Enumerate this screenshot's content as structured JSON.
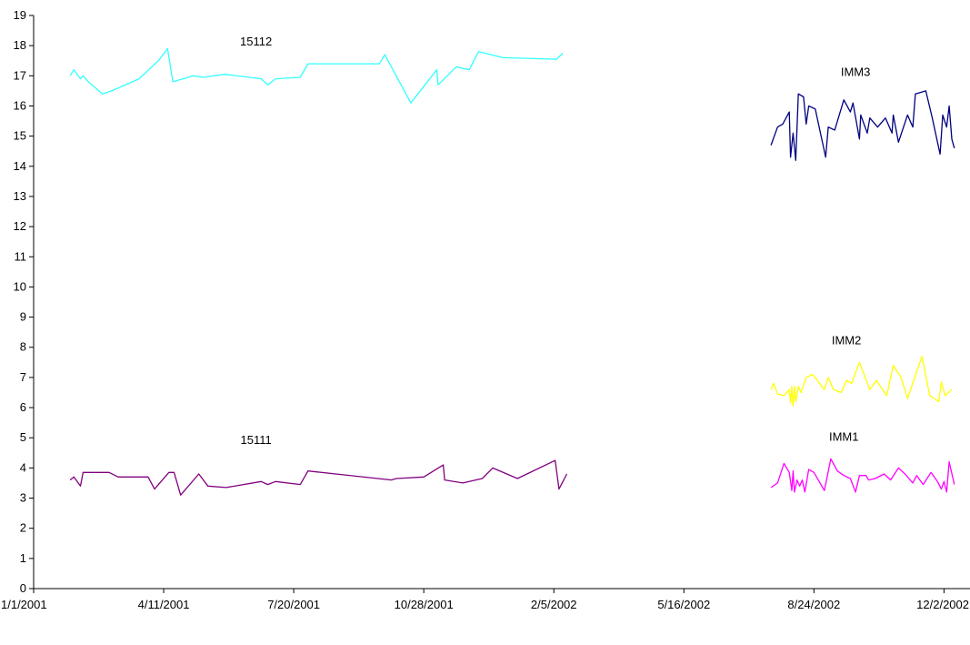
{
  "chart_data": {
    "type": "line",
    "title": "",
    "xlabel": "",
    "ylabel": "",
    "x_type": "date",
    "xlim": [
      "2001-01-01",
      "2002-12-22"
    ],
    "ylim": [
      0,
      19
    ],
    "y_ticks": [
      0,
      1,
      2,
      3,
      4,
      5,
      6,
      7,
      8,
      9,
      10,
      11,
      12,
      13,
      14,
      15,
      16,
      17,
      18,
      19
    ],
    "x_tick_labels": [
      "1/1/2001",
      "4/11/2001",
      "7/20/2001",
      "10/28/2001",
      "2/5/2002",
      "5/16/2002",
      "8/24/2002",
      "12/2/2002"
    ],
    "x_tick_dates": [
      "2001-01-01",
      "2001-04-11",
      "2001-07-20",
      "2001-10-28",
      "2002-02-05",
      "2002-05-16",
      "2002-08-24",
      "2002-12-02"
    ],
    "grid": false,
    "legend": "none",
    "series": [
      {
        "name": "15112",
        "color": "#33ffff",
        "label_at": [
          "2001-06-21",
          18.0
        ],
        "points": [
          [
            "2001-01-29",
            17.0
          ],
          [
            "2001-02-01",
            17.2
          ],
          [
            "2001-02-06",
            16.9
          ],
          [
            "2001-02-08",
            17.0
          ],
          [
            "2001-02-12",
            16.8
          ],
          [
            "2001-02-23",
            16.4
          ],
          [
            "2001-03-02",
            16.5
          ],
          [
            "2001-03-23",
            16.9
          ],
          [
            "2001-04-07",
            17.5
          ],
          [
            "2001-04-14",
            17.9
          ],
          [
            "2001-04-18",
            16.8
          ],
          [
            "2001-05-04",
            17.0
          ],
          [
            "2001-05-11",
            16.95
          ],
          [
            "2001-05-28",
            17.05
          ],
          [
            "2001-06-25",
            16.9
          ],
          [
            "2001-06-30",
            16.7
          ],
          [
            "2001-07-06",
            16.9
          ],
          [
            "2001-07-25",
            16.95
          ],
          [
            "2001-07-31",
            17.4
          ],
          [
            "2001-09-24",
            17.4
          ],
          [
            "2001-09-28",
            17.7
          ],
          [
            "2001-10-18",
            16.1
          ],
          [
            "2001-11-07",
            17.2
          ],
          [
            "2001-11-08",
            16.7
          ],
          [
            "2001-11-22",
            17.3
          ],
          [
            "2001-12-02",
            17.2
          ],
          [
            "2001-12-09",
            17.8
          ],
          [
            "2001-12-28",
            17.6
          ],
          [
            "2002-02-07",
            17.55
          ],
          [
            "2002-02-12",
            17.75
          ]
        ]
      },
      {
        "name": "15111",
        "color": "#800080",
        "label_at": [
          "2001-06-21",
          4.8
        ],
        "points": [
          [
            "2001-01-29",
            3.6
          ],
          [
            "2001-02-01",
            3.7
          ],
          [
            "2001-02-06",
            3.4
          ],
          [
            "2001-02-08",
            3.85
          ],
          [
            "2001-02-23",
            3.85
          ],
          [
            "2001-02-28",
            3.85
          ],
          [
            "2001-03-07",
            3.7
          ],
          [
            "2001-03-30",
            3.7
          ],
          [
            "2001-04-04",
            3.3
          ],
          [
            "2001-04-15",
            3.85
          ],
          [
            "2001-04-19",
            3.85
          ],
          [
            "2001-04-24",
            3.1
          ],
          [
            "2001-05-08",
            3.8
          ],
          [
            "2001-05-15",
            3.4
          ],
          [
            "2001-05-29",
            3.35
          ],
          [
            "2001-06-25",
            3.55
          ],
          [
            "2001-06-30",
            3.45
          ],
          [
            "2001-07-06",
            3.55
          ],
          [
            "2001-07-25",
            3.45
          ],
          [
            "2001-07-31",
            3.9
          ],
          [
            "2001-10-03",
            3.6
          ],
          [
            "2001-10-07",
            3.65
          ],
          [
            "2001-10-28",
            3.7
          ],
          [
            "2001-11-12",
            4.1
          ],
          [
            "2001-11-13",
            3.6
          ],
          [
            "2001-11-27",
            3.5
          ],
          [
            "2001-12-12",
            3.65
          ],
          [
            "2001-12-20",
            4.0
          ],
          [
            "2002-01-08",
            3.65
          ],
          [
            "2002-02-06",
            4.25
          ],
          [
            "2002-02-09",
            3.3
          ],
          [
            "2002-02-15",
            3.8
          ]
        ]
      },
      {
        "name": "IMM3",
        "color": "#000080",
        "label_at": [
          "2002-09-25",
          17.0
        ],
        "points": [
          [
            "2002-07-22",
            14.7
          ],
          [
            "2002-07-27",
            15.3
          ],
          [
            "2002-07-31",
            15.4
          ],
          [
            "2002-08-05",
            15.8
          ],
          [
            "2002-08-06",
            14.3
          ],
          [
            "2002-08-08",
            15.1
          ],
          [
            "2002-08-10",
            14.2
          ],
          [
            "2002-08-12",
            16.4
          ],
          [
            "2002-08-16",
            16.3
          ],
          [
            "2002-08-18",
            15.4
          ],
          [
            "2002-08-20",
            16.0
          ],
          [
            "2002-08-25",
            15.9
          ],
          [
            "2002-09-02",
            14.3
          ],
          [
            "2002-09-04",
            15.3
          ],
          [
            "2002-09-09",
            15.2
          ],
          [
            "2002-09-16",
            16.2
          ],
          [
            "2002-09-21",
            15.8
          ],
          [
            "2002-09-23",
            16.1
          ],
          [
            "2002-09-28",
            14.9
          ],
          [
            "2002-09-29",
            15.7
          ],
          [
            "2002-10-04",
            15.1
          ],
          [
            "2002-10-06",
            15.6
          ],
          [
            "2002-10-12",
            15.3
          ],
          [
            "2002-10-18",
            15.6
          ],
          [
            "2002-10-23",
            15.1
          ],
          [
            "2002-10-24",
            15.7
          ],
          [
            "2002-10-28",
            14.8
          ],
          [
            "2002-11-04",
            15.7
          ],
          [
            "2002-11-08",
            15.3
          ],
          [
            "2002-11-10",
            16.4
          ],
          [
            "2002-11-18",
            16.5
          ],
          [
            "2002-11-23",
            15.6
          ],
          [
            "2002-11-29",
            14.4
          ],
          [
            "2002-12-01",
            15.7
          ],
          [
            "2002-12-04",
            15.3
          ],
          [
            "2002-12-06",
            16.0
          ],
          [
            "2002-12-08",
            14.9
          ],
          [
            "2002-12-10",
            14.6
          ]
        ]
      },
      {
        "name": "IMM2",
        "color": "#ffff00",
        "label_at": [
          "2002-09-18",
          8.1
        ],
        "points": [
          [
            "2002-07-22",
            6.6
          ],
          [
            "2002-07-24",
            6.8
          ],
          [
            "2002-07-27",
            6.45
          ],
          [
            "2002-08-01",
            6.4
          ],
          [
            "2002-08-05",
            6.6
          ],
          [
            "2002-08-06",
            6.15
          ],
          [
            "2002-08-07",
            6.7
          ],
          [
            "2002-08-08",
            6.05
          ],
          [
            "2002-08-09",
            6.7
          ],
          [
            "2002-08-10",
            6.2
          ],
          [
            "2002-08-12",
            6.7
          ],
          [
            "2002-08-14",
            6.5
          ],
          [
            "2002-08-18",
            7.0
          ],
          [
            "2002-08-23",
            7.1
          ],
          [
            "2002-09-01",
            6.6
          ],
          [
            "2002-09-04",
            7.0
          ],
          [
            "2002-09-08",
            6.6
          ],
          [
            "2002-09-14",
            6.5
          ],
          [
            "2002-09-18",
            6.9
          ],
          [
            "2002-09-22",
            6.8
          ],
          [
            "2002-09-28",
            7.5
          ],
          [
            "2002-10-06",
            6.6
          ],
          [
            "2002-10-11",
            6.9
          ],
          [
            "2002-10-19",
            6.4
          ],
          [
            "2002-10-24",
            7.4
          ],
          [
            "2002-10-30",
            7.0
          ],
          [
            "2002-11-04",
            6.3
          ],
          [
            "2002-11-15",
            7.7
          ],
          [
            "2002-11-21",
            6.4
          ],
          [
            "2002-11-28",
            6.2
          ],
          [
            "2002-11-30",
            6.85
          ],
          [
            "2002-12-03",
            6.4
          ],
          [
            "2002-12-08",
            6.6
          ]
        ]
      },
      {
        "name": "IMM1",
        "color": "#ff00ff",
        "label_at": [
          "2002-09-16",
          4.9
        ],
        "points": [
          [
            "2002-07-22",
            3.35
          ],
          [
            "2002-07-27",
            3.5
          ],
          [
            "2002-08-01",
            4.15
          ],
          [
            "2002-08-05",
            3.85
          ],
          [
            "2002-08-07",
            3.25
          ],
          [
            "2002-08-08",
            3.9
          ],
          [
            "2002-08-09",
            3.2
          ],
          [
            "2002-08-11",
            3.6
          ],
          [
            "2002-08-13",
            3.4
          ],
          [
            "2002-08-15",
            3.6
          ],
          [
            "2002-08-17",
            3.2
          ],
          [
            "2002-08-20",
            3.95
          ],
          [
            "2002-08-24",
            3.85
          ],
          [
            "2002-09-01",
            3.25
          ],
          [
            "2002-09-06",
            4.3
          ],
          [
            "2002-09-11",
            3.9
          ],
          [
            "2002-09-16",
            3.75
          ],
          [
            "2002-09-21",
            3.65
          ],
          [
            "2002-09-25",
            3.2
          ],
          [
            "2002-09-28",
            3.75
          ],
          [
            "2002-10-03",
            3.75
          ],
          [
            "2002-10-05",
            3.6
          ],
          [
            "2002-10-10",
            3.65
          ],
          [
            "2002-10-17",
            3.8
          ],
          [
            "2002-10-22",
            3.6
          ],
          [
            "2002-10-28",
            4.0
          ],
          [
            "2002-11-02",
            3.8
          ],
          [
            "2002-11-08",
            3.5
          ],
          [
            "2002-11-11",
            3.75
          ],
          [
            "2002-11-16",
            3.45
          ],
          [
            "2002-11-22",
            3.85
          ],
          [
            "2002-11-27",
            3.55
          ],
          [
            "2002-11-30",
            3.3
          ],
          [
            "2002-12-02",
            3.55
          ],
          [
            "2002-12-04",
            3.2
          ],
          [
            "2002-12-06",
            4.2
          ],
          [
            "2002-12-10",
            3.45
          ]
        ]
      }
    ]
  }
}
